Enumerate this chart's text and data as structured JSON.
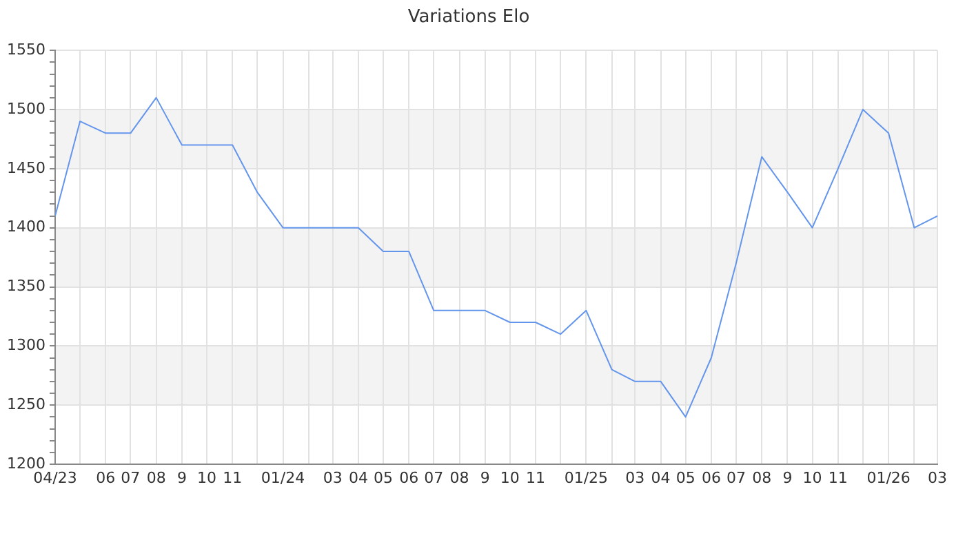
{
  "chart_data": {
    "type": "line",
    "title": "Variations Elo",
    "x": [
      "2023-04",
      "2023-05",
      "2023-06",
      "2023-07",
      "2023-08",
      "2023-09",
      "2023-10",
      "2023-11",
      "2023-12",
      "2024-01",
      "2024-02",
      "2024-03",
      "2024-04",
      "2024-05",
      "2024-06",
      "2024-07",
      "2024-08",
      "2024-09",
      "2024-10",
      "2024-11",
      "2024-12",
      "2025-01",
      "2025-02",
      "2025-03",
      "2025-04",
      "2025-05",
      "2025-06",
      "2025-07",
      "2025-08",
      "2025-09",
      "2025-10",
      "2025-11",
      "2025-12",
      "2026-01",
      "2026-02",
      "2026-03"
    ],
    "values": [
      1410,
      1490,
      1480,
      1480,
      1510,
      1470,
      1470,
      1470,
      1430,
      1400,
      1400,
      1400,
      1400,
      1380,
      1380,
      1330,
      1330,
      1330,
      1320,
      1320,
      1310,
      1330,
      1280,
      1270,
      1270,
      1240,
      1290,
      1370,
      1460,
      1430,
      1400,
      1450,
      1500,
      1480,
      1400,
      1410
    ],
    "color": "#6495ed",
    "xlim": [
      "2023-04",
      "2026-03"
    ],
    "xticks": [
      {
        "value": "2023-04",
        "label": "04/23"
      },
      {
        "value": "2023-05",
        "label": null
      },
      {
        "value": "2023-06",
        "label": "06"
      },
      {
        "value": "2023-07",
        "label": "07"
      },
      {
        "value": "2023-08",
        "label": "08"
      },
      {
        "value": "2023-09",
        "label": "9"
      },
      {
        "value": "2023-10",
        "label": "10"
      },
      {
        "value": "2023-11",
        "label": "11"
      },
      {
        "value": "2023-12",
        "label": null
      },
      {
        "value": "2024-01",
        "label": "01/24"
      },
      {
        "value": "2024-02",
        "label": null
      },
      {
        "value": "2024-03",
        "label": "03"
      },
      {
        "value": "2024-04",
        "label": "04"
      },
      {
        "value": "2024-05",
        "label": "05"
      },
      {
        "value": "2024-06",
        "label": "06"
      },
      {
        "value": "2024-07",
        "label": "07"
      },
      {
        "value": "2024-08",
        "label": "08"
      },
      {
        "value": "2024-09",
        "label": "9"
      },
      {
        "value": "2024-10",
        "label": "10"
      },
      {
        "value": "2024-11",
        "label": "11"
      },
      {
        "value": "2024-12",
        "label": null
      },
      {
        "value": "2025-01",
        "label": "01/25"
      },
      {
        "value": "2025-02",
        "label": null
      },
      {
        "value": "2025-03",
        "label": "03"
      },
      {
        "value": "2025-04",
        "label": "04"
      },
      {
        "value": "2025-05",
        "label": "05"
      },
      {
        "value": "2025-06",
        "label": "06"
      },
      {
        "value": "2025-07",
        "label": "07"
      },
      {
        "value": "2025-08",
        "label": "08"
      },
      {
        "value": "2025-09",
        "label": "9"
      },
      {
        "value": "2025-10",
        "label": "10"
      },
      {
        "value": "2025-11",
        "label": "11"
      },
      {
        "value": "2025-12",
        "label": null
      },
      {
        "value": "2026-01",
        "label": "01/26"
      },
      {
        "value": "2026-02",
        "label": null
      },
      {
        "value": "2026-03",
        "label": "03"
      }
    ],
    "ylim": [
      1200,
      1550
    ],
    "yticks": [
      1200,
      {
        "value": 1210,
        "label": null
      },
      {
        "value": 1220,
        "label": null
      },
      {
        "value": 1230,
        "label": null
      },
      {
        "value": 1240,
        "label": null
      },
      1250,
      {
        "value": 1260,
        "label": null
      },
      {
        "value": 1270,
        "label": null
      },
      {
        "value": 1280,
        "label": null
      },
      {
        "value": 1290,
        "label": null
      },
      1300,
      {
        "value": 1310,
        "label": null
      },
      {
        "value": 1320,
        "label": null
      },
      {
        "value": 1330,
        "label": null
      },
      {
        "value": 1340,
        "label": null
      },
      1350,
      {
        "value": 1360,
        "label": null
      },
      {
        "value": 1370,
        "label": null
      },
      {
        "value": 1380,
        "label": null
      },
      {
        "value": 1390,
        "label": null
      },
      1400,
      {
        "value": 1410,
        "label": null
      },
      {
        "value": 1420,
        "label": null
      },
      {
        "value": 1430,
        "label": null
      },
      {
        "value": 1440,
        "label": null
      },
      1450,
      {
        "value": 1460,
        "label": null
      },
      {
        "value": 1470,
        "label": null
      },
      {
        "value": 1480,
        "label": null
      },
      {
        "value": 1490,
        "label": null
      },
      1500,
      {
        "value": 1510,
        "label": null
      },
      {
        "value": 1520,
        "label": null
      },
      {
        "value": 1530,
        "label": null
      },
      {
        "value": 1540,
        "label": null
      },
      1550
    ],
    "bands": [
      {
        "axis": "y",
        "from": 1250,
        "to": 1300,
        "color": "#f3f3f3"
      },
      {
        "axis": "y",
        "from": 1350,
        "to": 1400,
        "color": "#f3f3f3"
      },
      {
        "axis": "y",
        "from": 1450,
        "to": 1500,
        "color": "#f3f3f3"
      }
    ],
    "grid": true,
    "legend": false
  }
}
